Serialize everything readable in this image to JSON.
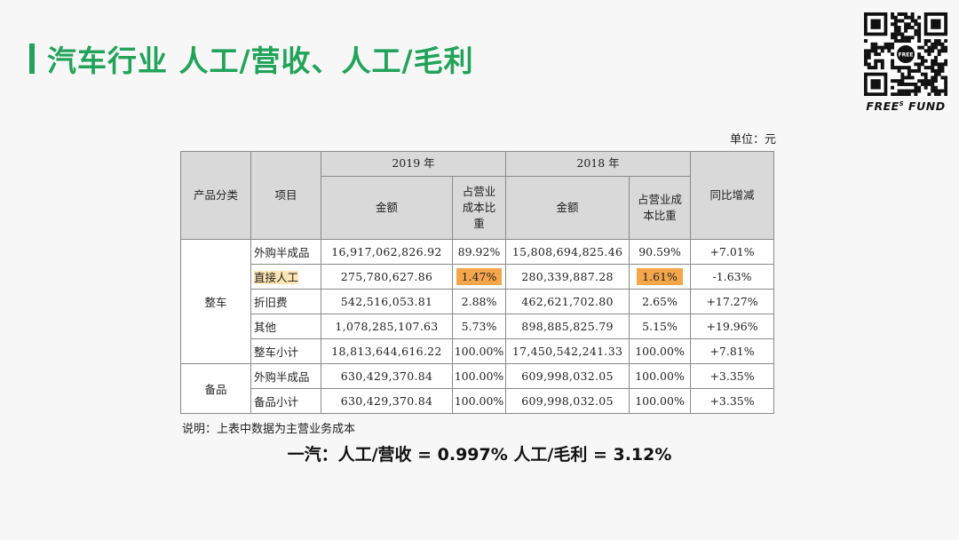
{
  "title": "汽车行业 人工/营收、人工/毛利",
  "logo": {
    "caption_main": "FREE",
    "caption_sup": "S",
    "caption_tail": " FUND",
    "qr_center_text": "FREE"
  },
  "unit_note": "单位：元",
  "table": {
    "headers": {
      "category": "产品分类",
      "item": "项目",
      "year_2019": "2019 年",
      "year_2018": "2018 年",
      "amount": "金额",
      "share": "占营业成本比重",
      "share_2018": "占营业成本比重",
      "yoy": "同比增减"
    },
    "groups": [
      {
        "category": "整车",
        "rows": [
          {
            "item": "外购半成品",
            "amt_2019": "16,917,062,826.92",
            "pct_2019": "89.92%",
            "amt_2018": "15,808,694,825.46",
            "pct_2018": "90.59%",
            "yoy": "+7.01%"
          },
          {
            "item": "直接人工",
            "amt_2019": "275,780,627.86",
            "pct_2019": "1.47%",
            "amt_2018": "280,339,887.28",
            "pct_2018": "1.61%",
            "yoy": "-1.63%"
          },
          {
            "item": "折旧费",
            "amt_2019": "542,516,053.81",
            "pct_2019": "2.88%",
            "amt_2018": "462,621,702.80",
            "pct_2018": "2.65%",
            "yoy": "+17.27%"
          },
          {
            "item": "其他",
            "amt_2019": "1,078,285,107.63",
            "pct_2019": "5.73%",
            "amt_2018": "898,885,825.79",
            "pct_2018": "5.15%",
            "yoy": "+19.96%"
          },
          {
            "item": "整车小计",
            "amt_2019": "18,813,644,616.22",
            "pct_2019": "100.00%",
            "amt_2018": "17,450,542,241.33",
            "pct_2018": "100.00%",
            "yoy": "+7.81%"
          }
        ]
      },
      {
        "category": "备品",
        "rows": [
          {
            "item": "外购半成品",
            "amt_2019": "630,429,370.84",
            "pct_2019": "100.00%",
            "amt_2018": "609,998,032.05",
            "pct_2018": "100.00%",
            "yoy": "+3.35%"
          },
          {
            "item": "备品小计",
            "amt_2019": "630,429,370.84",
            "pct_2019": "100.00%",
            "amt_2018": "609,998,032.05",
            "pct_2018": "100.00%",
            "yoy": "+3.35%"
          }
        ]
      }
    ]
  },
  "footnote": "说明：上表中数据为主营业务成本",
  "summary": "一汽：人工/营收 = 0.997%   人工/毛利 = 3.12%",
  "colors": {
    "accent": "#21a35a",
    "highlight": "#f5a54a",
    "header_bg": "#d9d9d9"
  }
}
